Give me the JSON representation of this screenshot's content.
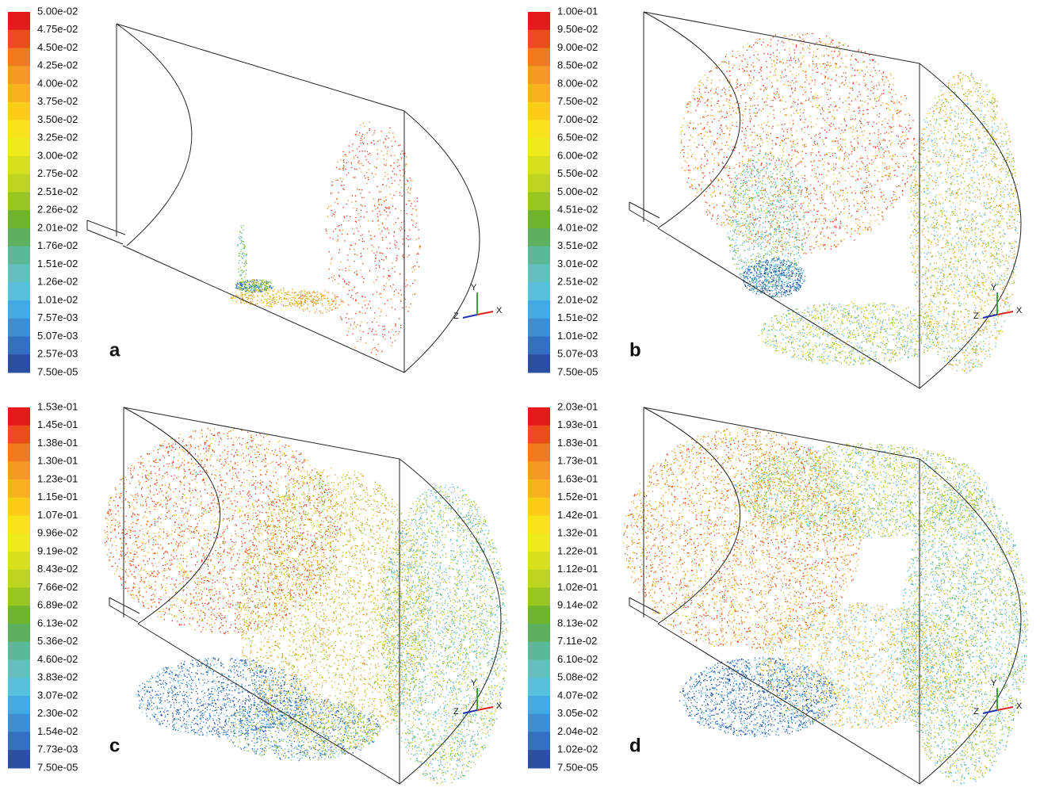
{
  "panels": [
    {
      "label": "a",
      "legend": [
        "5.00e-02",
        "4.75e-02",
        "4.50e-02",
        "4.25e-02",
        "4.00e-02",
        "3.75e-02",
        "3.50e-02",
        "3.25e-02",
        "3.00e-02",
        "2.75e-02",
        "2.51e-02",
        "2.26e-02",
        "2.01e-02",
        "1.76e-02",
        "1.51e-02",
        "1.26e-02",
        "1.01e-02",
        "7.57e-03",
        "5.07e-03",
        "2.57e-03",
        "7.50e-05"
      ]
    },
    {
      "label": "b",
      "legend": [
        "1.00e-01",
        "9.50e-02",
        "9.00e-02",
        "8.50e-02",
        "8.00e-02",
        "7.50e-02",
        "7.00e-02",
        "6.50e-02",
        "6.00e-02",
        "5.50e-02",
        "5.00e-02",
        "4.51e-02",
        "4.01e-02",
        "3.51e-02",
        "3.01e-02",
        "2.51e-02",
        "2.01e-02",
        "1.51e-02",
        "1.01e-02",
        "5.07e-03",
        "7.50e-05"
      ]
    },
    {
      "label": "c",
      "legend": [
        "1.53e-01",
        "1.45e-01",
        "1.38e-01",
        "1.30e-01",
        "1.23e-01",
        "1.15e-01",
        "1.07e-01",
        "9.96e-02",
        "9.19e-02",
        "8.43e-02",
        "7.66e-02",
        "6.89e-02",
        "6.13e-02",
        "5.36e-02",
        "4.60e-02",
        "3.83e-02",
        "3.07e-02",
        "2.30e-02",
        "1.54e-02",
        "7.73e-03",
        "7.50e-05"
      ]
    },
    {
      "label": "d",
      "legend": [
        "2.03e-01",
        "1.93e-01",
        "1.83e-01",
        "1.73e-01",
        "1.63e-01",
        "1.52e-01",
        "1.42e-01",
        "1.32e-01",
        "1.22e-01",
        "1.12e-01",
        "1.02e-01",
        "9.14e-02",
        "8.13e-02",
        "7.11e-02",
        "6.10e-02",
        "5.08e-02",
        "4.07e-02",
        "3.05e-02",
        "2.04e-02",
        "1.02e-02",
        "7.50e-05"
      ]
    }
  ],
  "axes": {
    "x": "X",
    "y": "Y",
    "z": "Z"
  }
}
